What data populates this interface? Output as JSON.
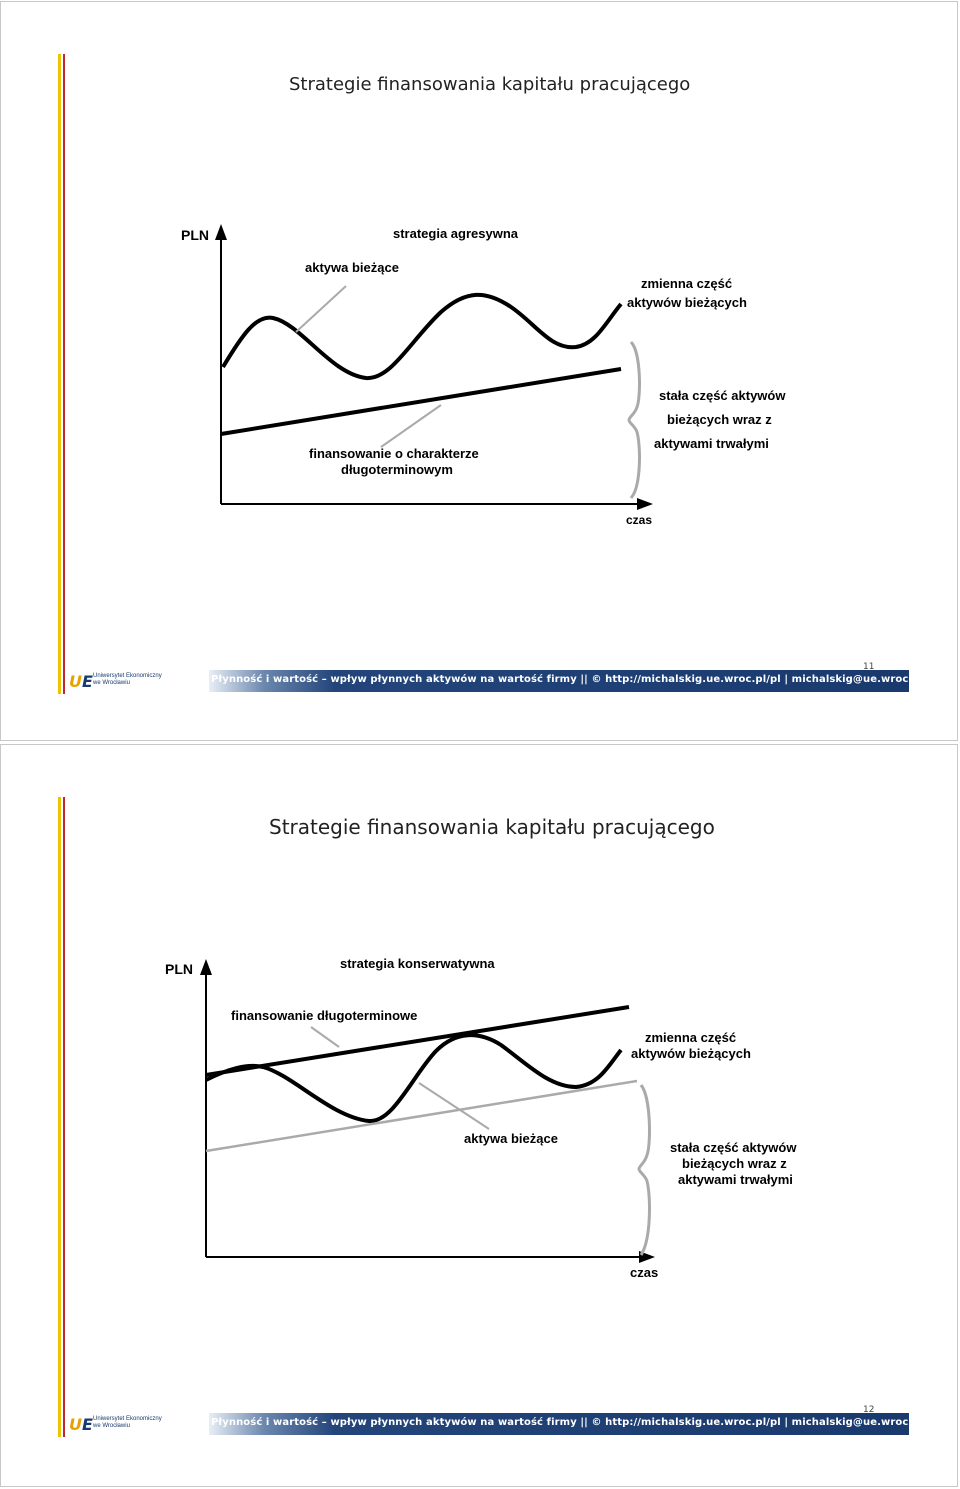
{
  "slides": [
    {
      "title": "Strategie finansowania kapitału pracującego",
      "diagram": {
        "y_axis_label": "PLN",
        "x_axis_label": "czas",
        "strategy": "strategia agresywna",
        "curve_label": "aktywa bieżące",
        "variable_part_line1": "zmienna część",
        "variable_part_line2": "aktywów bieżących",
        "fixed_part_line1": "stała część aktywów",
        "fixed_part_line2": "bieżących wraz z",
        "fixed_part_line3": "aktywami trwałymi",
        "financing_line1": "finansowanie o charakterze",
        "financing_line2": "długoterminowym"
      },
      "footer": "Płynność i wartość – wpływ płynnych aktywów na wartość firmy || © http://michalskig.ue.wroc.pl/pl | michalskig@ue.wroc.pl",
      "page_number": "11"
    },
    {
      "title": "Strategie finansowania kapitału pracującego",
      "diagram": {
        "y_axis_label": "PLN",
        "x_axis_label": "czas",
        "strategy": "strategia konserwatywna",
        "financing_label": "finansowanie długoterminowe",
        "variable_part_line1": "zmienna część",
        "variable_part_line2": "aktywów bieżących",
        "curve_label": "aktywa bieżące",
        "fixed_part_line1": "stała część aktywów",
        "fixed_part_line2": "bieżących wraz z",
        "fixed_part_line3": "aktywami trwałymi"
      },
      "footer": "Płynność i wartość – wpływ płynnych aktywów na wartość firmy || © http://michalskig.ue.wroc.pl/pl | michalskig@ue.wroc.pl",
      "page_number": "12"
    }
  ],
  "logo": {
    "line1": "Uniwersytet Ekonomiczny",
    "line2": "we Wrocławiu"
  },
  "colors": {
    "accent_yellow": "#f2c200",
    "accent_red": "#c0282d",
    "footer_blue": "#1a3a6e"
  }
}
